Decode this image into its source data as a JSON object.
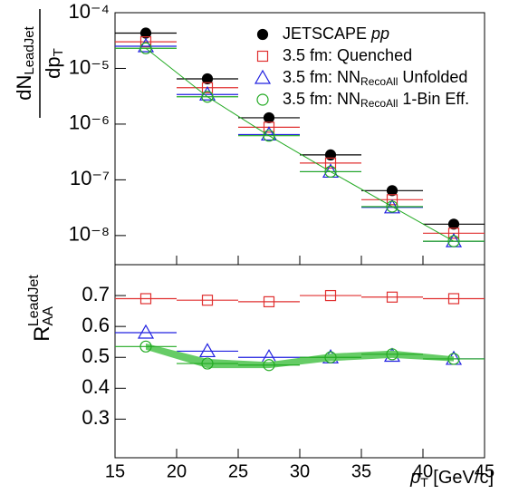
{
  "chart_data": [
    {
      "type": "scatter",
      "log_y": true,
      "ylabel": {
        "numerator": "dN",
        "numerator_sub": "LeadJet",
        "denominator": "dp",
        "denominator_sub": "T"
      },
      "xlim": [
        15,
        45
      ],
      "xticks": [
        15,
        20,
        25,
        30,
        35,
        40,
        45
      ],
      "ylim": [
        3e-09,
        0.0001
      ],
      "yticks": [
        {
          "value": 0.0001,
          "label": "10⁻⁴"
        },
        {
          "value": 1e-05,
          "label": "10⁻⁵"
        },
        {
          "value": 1e-06,
          "label": "10⁻⁶"
        },
        {
          "value": 1e-07,
          "label": "10⁻⁷"
        },
        {
          "value": 1e-08,
          "label": "10⁻⁸"
        }
      ],
      "legend": "upper right",
      "series": [
        {
          "name": [
            "JETSCAPE ",
            "pp"
          ],
          "color": "#000000",
          "marker": "filled-circle",
          "x": [
            17.5,
            22.5,
            27.5,
            32.5,
            37.5,
            42.5
          ],
          "x_err": [
            2.5,
            2.5,
            2.5,
            2.5,
            2.5,
            2.5
          ],
          "values": [
            4.3e-05,
            6.5e-06,
            1.3e-06,
            2.8e-07,
            6.4e-08,
            1.6e-08
          ]
        },
        {
          "name": [
            "3.5 fm: Quenched"
          ],
          "color": "#e03030",
          "marker": "open-square",
          "x": [
            17.5,
            22.5,
            27.5,
            32.5,
            37.5,
            42.5
          ],
          "x_err": [
            2.5,
            2.5,
            2.5,
            2.5,
            2.5,
            2.5
          ],
          "values": [
            3e-05,
            4.5e-06,
            8.8e-07,
            2e-07,
            4.4e-08,
            1.1e-08
          ]
        },
        {
          "name": [
            "3.5 fm: NN",
            "RecoAll",
            " Unfolded"
          ],
          "color": "#2020e0",
          "marker": "open-triangle",
          "x": [
            17.5,
            22.5,
            27.5,
            32.5,
            37.5,
            42.5
          ],
          "x_err": [
            2.5,
            2.5,
            2.5,
            2.5,
            2.5,
            2.5
          ],
          "values": [
            2.5e-05,
            3.4e-06,
            6.5e-07,
            1.4e-07,
            3.2e-08,
            7.9e-09
          ]
        },
        {
          "name": [
            "3.5 fm: NN",
            "RecoAll",
            " 1-Bin Eff."
          ],
          "color": "#22aa22",
          "marker": "open-circle",
          "line": true,
          "x": [
            17.5,
            22.5,
            27.5,
            32.5,
            37.5,
            42.5
          ],
          "x_err": [
            2.5,
            2.5,
            2.5,
            2.5,
            2.5,
            2.5
          ],
          "values": [
            2.3e-05,
            3.1e-06,
            6.2e-07,
            1.4e-07,
            3.3e-08,
            7.9e-09
          ]
        }
      ]
    },
    {
      "type": "scatter",
      "ylabel": {
        "main": "R",
        "sub": "AA",
        "sup": "LeadJet"
      },
      "xlabel": {
        "main": "p",
        "sub": "T",
        "unit": " [GeV/c]"
      },
      "xlim": [
        15,
        45
      ],
      "xticks": [
        15,
        20,
        25,
        30,
        35,
        40,
        45
      ],
      "ylim": [
        0.175,
        0.8
      ],
      "yticks": [
        0.3,
        0.4,
        0.5,
        0.6,
        0.7
      ],
      "series": [
        {
          "color": "#e03030",
          "marker": "open-square",
          "x": [
            17.5,
            22.5,
            27.5,
            32.5,
            37.5,
            42.5
          ],
          "x_err": [
            2.5,
            2.5,
            2.5,
            2.5,
            2.5,
            2.5
          ],
          "values": [
            0.69,
            0.685,
            0.68,
            0.7,
            0.695,
            0.69
          ]
        },
        {
          "color": "#2020e0",
          "marker": "open-triangle",
          "x": [
            17.5,
            22.5,
            27.5,
            32.5,
            37.5,
            42.5
          ],
          "x_err": [
            2.5,
            2.5,
            2.5,
            2.5,
            2.5,
            2.5
          ],
          "values": [
            0.58,
            0.52,
            0.5,
            0.5,
            0.505,
            0.495
          ]
        },
        {
          "color": "#22aa22",
          "marker": "open-circle",
          "band_color": "#66cc66",
          "x": [
            17.5,
            22.5,
            27.5,
            32.5,
            37.5,
            42.5
          ],
          "x_err": [
            2.5,
            2.5,
            2.5,
            2.5,
            2.5,
            2.5
          ],
          "values": [
            0.535,
            0.48,
            0.475,
            0.5,
            0.51,
            0.495
          ],
          "band_err": [
            0.01,
            0.015,
            0.01,
            0.012,
            0.012,
            0.008
          ]
        }
      ]
    }
  ]
}
